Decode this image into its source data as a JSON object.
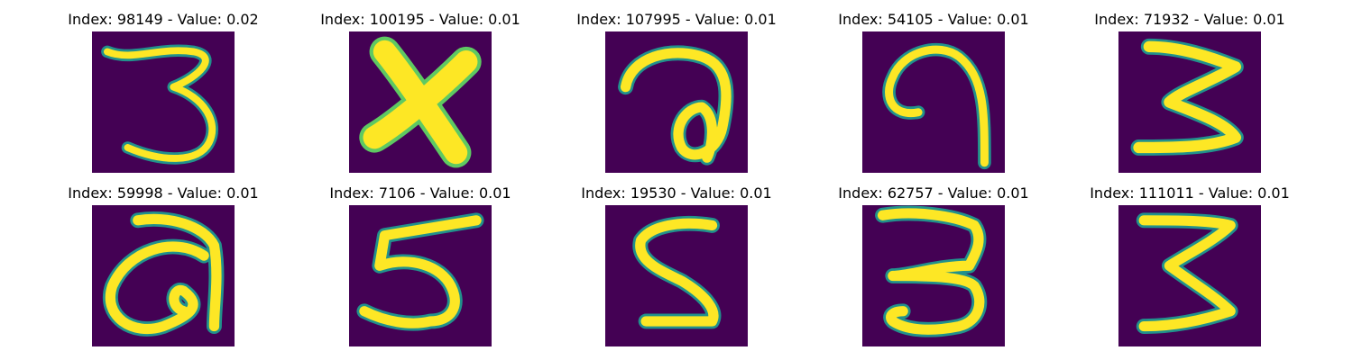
{
  "colors": {
    "background": "#440154",
    "stroke_edge": "#21918c",
    "stroke_mid": "#5ec962",
    "stroke_core": "#fde725"
  },
  "panels": [
    {
      "title": "Index: 98149 - Value: 0.02",
      "glyph": "3"
    },
    {
      "title": "Index: 100195 - Value: 0.01",
      "glyph": "X"
    },
    {
      "title": "Index: 107995 - Value: 0.01",
      "glyph": "a-loop"
    },
    {
      "title": "Index: 54105 - Value: 0.01",
      "glyph": "9-reversed"
    },
    {
      "title": "Index: 71932 - Value: 0.01",
      "glyph": "3"
    },
    {
      "title": "Index: 59998 - Value: 0.01",
      "glyph": "a-loop"
    },
    {
      "title": "Index: 7106 - Value: 0.01",
      "glyph": "5"
    },
    {
      "title": "Index: 19530 - Value: 0.01",
      "glyph": "5"
    },
    {
      "title": "Index: 62757 - Value: 0.01",
      "glyph": "3"
    },
    {
      "title": "Index: 111011 - Value: 0.01",
      "glyph": "3"
    }
  ]
}
